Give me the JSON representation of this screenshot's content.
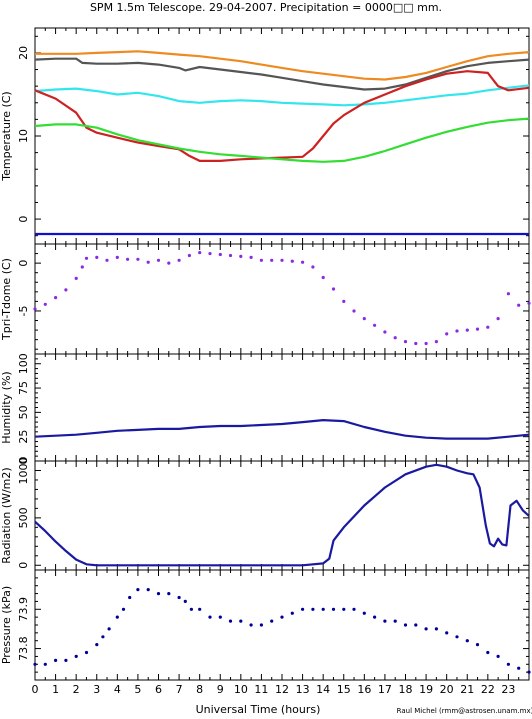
{
  "title": "SPM 1.5m Telescope. 29-04-2007. Precipitation = 0000□□ mm.",
  "credit": "Raul Michel (rmm@astrosen.unam.mx)",
  "xlabel": "Universal Time (hours)",
  "x_ticks": [
    0,
    1,
    2,
    3,
    4,
    5,
    6,
    7,
    8,
    9,
    10,
    11,
    12,
    13,
    14,
    15,
    16,
    17,
    18,
    19,
    20,
    21,
    22,
    23
  ],
  "colors": {
    "orange": "#ee8a22",
    "gray": "#555555",
    "cyan": "#33e6ee",
    "red": "#cc2222",
    "green": "#33dd33",
    "blue": "#1010cc",
    "purple": "#8a2be2",
    "navy": "#1a1aa0",
    "darkblue": "#000099"
  },
  "chart_data": [
    {
      "type": "line",
      "ylabel": "Temperature (C)",
      "xlim": [
        0,
        24
      ],
      "ylim": [
        -3,
        23
      ],
      "y_ticks": [
        0,
        10,
        20
      ],
      "series": [
        {
          "color": "orange",
          "x": [
            0,
            1,
            2,
            3,
            4,
            5,
            6,
            7,
            8,
            9,
            10,
            11,
            12,
            13,
            14,
            15,
            16,
            17,
            18,
            19,
            20,
            21,
            22,
            23,
            24
          ],
          "values": [
            19.9,
            19.9,
            19.9,
            20.0,
            20.1,
            20.2,
            20.0,
            19.8,
            19.6,
            19.3,
            19.0,
            18.6,
            18.2,
            17.8,
            17.5,
            17.2,
            16.9,
            16.8,
            17.1,
            17.6,
            18.3,
            19.0,
            19.6,
            19.9,
            20.1
          ]
        },
        {
          "color": "gray",
          "x": [
            0,
            1,
            2,
            2.3,
            3,
            4,
            5,
            6,
            7,
            7.3,
            8,
            9,
            10,
            11,
            12,
            13,
            14,
            15,
            16,
            17,
            18,
            19,
            20,
            21,
            22,
            23,
            24
          ],
          "values": [
            19.2,
            19.3,
            19.3,
            18.8,
            18.7,
            18.7,
            18.8,
            18.6,
            18.2,
            17.9,
            18.3,
            18.0,
            17.7,
            17.4,
            17.0,
            16.6,
            16.2,
            15.9,
            15.6,
            15.7,
            16.2,
            17.0,
            17.8,
            18.4,
            18.8,
            19.0,
            19.2
          ]
        },
        {
          "color": "cyan",
          "x": [
            0,
            1,
            2,
            3,
            4,
            5,
            6,
            7,
            8,
            9,
            10,
            11,
            12,
            13,
            14,
            15,
            16,
            17,
            18,
            19,
            20,
            21,
            22,
            23,
            24
          ],
          "values": [
            15.4,
            15.6,
            15.7,
            15.4,
            15.0,
            15.2,
            14.8,
            14.2,
            14.0,
            14.2,
            14.3,
            14.2,
            14.0,
            13.9,
            13.8,
            13.7,
            13.8,
            14.0,
            14.3,
            14.6,
            14.9,
            15.1,
            15.5,
            15.8,
            16.1
          ]
        },
        {
          "color": "red",
          "x": [
            0,
            1,
            2,
            2.5,
            3,
            4,
            5,
            6,
            7,
            7.5,
            8,
            9,
            10,
            11,
            12,
            13,
            13.5,
            14,
            14.5,
            15,
            16,
            17,
            18,
            19,
            20,
            21,
            22,
            22.5,
            23,
            24
          ],
          "values": [
            15.5,
            14.5,
            12.8,
            11.0,
            10.4,
            9.8,
            9.2,
            8.8,
            8.4,
            7.6,
            7.0,
            7.0,
            7.2,
            7.3,
            7.4,
            7.5,
            8.5,
            10.0,
            11.5,
            12.5,
            14.0,
            15.0,
            16.0,
            16.8,
            17.5,
            17.8,
            17.6,
            16.0,
            15.5,
            15.8
          ]
        },
        {
          "color": "green",
          "x": [
            0,
            1,
            2,
            3,
            4,
            5,
            6,
            7,
            8,
            9,
            10,
            11,
            12,
            13,
            14,
            15,
            16,
            17,
            18,
            19,
            20,
            21,
            22,
            23,
            24
          ],
          "values": [
            11.2,
            11.4,
            11.4,
            11.0,
            10.2,
            9.5,
            9.0,
            8.5,
            8.1,
            7.8,
            7.6,
            7.4,
            7.2,
            7.0,
            6.9,
            7.0,
            7.5,
            8.2,
            9.0,
            9.8,
            10.5,
            11.1,
            11.6,
            11.9,
            12.1
          ]
        },
        {
          "color": "blue",
          "x": [
            0,
            24
          ],
          "values": [
            -1.8,
            -1.8
          ]
        }
      ]
    },
    {
      "type": "scatter",
      "ylabel": "Tpri-Tdome (C)",
      "xlim": [
        0,
        24
      ],
      "ylim": [
        -9.5,
        2
      ],
      "y_ticks": [
        -5,
        0
      ],
      "series": [
        {
          "color": "purple",
          "x": [
            0,
            0.5,
            1,
            1.5,
            2,
            2.3,
            2.5,
            3,
            3.5,
            4,
            4.5,
            5,
            5.5,
            6,
            6.5,
            7,
            7.5,
            8,
            8.5,
            9,
            9.5,
            10,
            10.5,
            11,
            11.5,
            12,
            12.5,
            13,
            13.5,
            14,
            14.5,
            15,
            15.5,
            16,
            16.5,
            17,
            17.5,
            18,
            18.5,
            19,
            19.5,
            20,
            20.5,
            21,
            21.5,
            22,
            22.5,
            23,
            23.5,
            24
          ],
          "values": [
            -4.8,
            -4.3,
            -3.6,
            -2.8,
            -1.6,
            -0.4,
            0.5,
            0.6,
            0.3,
            0.6,
            0.4,
            0.4,
            0.1,
            0.3,
            0.0,
            0.3,
            0.8,
            1.1,
            1.0,
            0.9,
            0.8,
            0.7,
            0.6,
            0.3,
            0.3,
            0.3,
            0.2,
            0.1,
            -0.4,
            -1.5,
            -2.7,
            -4.0,
            -5.0,
            -5.8,
            -6.5,
            -7.2,
            -7.8,
            -8.2,
            -8.4,
            -8.4,
            -8.2,
            -7.4,
            -7.1,
            -7.0,
            -6.9,
            -6.7,
            -5.8,
            -3.2,
            -4.4,
            -4.2
          ]
        }
      ]
    },
    {
      "type": "line",
      "ylabel": "Humidity (%)",
      "xlim": [
        0,
        24
      ],
      "ylim": [
        0,
        110
      ],
      "y_ticks": [
        0,
        25,
        50,
        75,
        100
      ],
      "series": [
        {
          "color": "navy",
          "x": [
            0,
            1,
            2,
            3,
            4,
            5,
            6,
            7,
            8,
            9,
            10,
            11,
            12,
            13,
            14,
            15,
            16,
            17,
            18,
            19,
            20,
            21,
            22,
            23,
            24
          ],
          "values": [
            25,
            26,
            27,
            29,
            31,
            32,
            33,
            33,
            35,
            36,
            36,
            37,
            38,
            40,
            42,
            41,
            35,
            30,
            26,
            24,
            23,
            23,
            23,
            25,
            27
          ]
        }
      ]
    },
    {
      "type": "line",
      "ylabel": "Radiation (W/m2)",
      "xlim": [
        0,
        24
      ],
      "ylim": [
        -50,
        1100
      ],
      "y_ticks": [
        0,
        500,
        1000
      ],
      "series": [
        {
          "color": "navy",
          "x": [
            0,
            0.5,
            1,
            1.5,
            2,
            2.5,
            3,
            4,
            5,
            6,
            7,
            8,
            9,
            10,
            11,
            12,
            13,
            14,
            14.3,
            14.5,
            15,
            16,
            17,
            18,
            19,
            19.5,
            20,
            20.5,
            21,
            21.3,
            21.6,
            21.9,
            22.1,
            22.3,
            22.5,
            22.7,
            22.9,
            23.1,
            23.4,
            23.7,
            24
          ],
          "values": [
            460,
            360,
            250,
            150,
            60,
            10,
            0,
            0,
            0,
            0,
            0,
            0,
            0,
            0,
            0,
            0,
            0,
            20,
            70,
            260,
            400,
            630,
            820,
            960,
            1040,
            1060,
            1040,
            1000,
            970,
            960,
            820,
            420,
            230,
            200,
            280,
            220,
            210,
            630,
            680,
            580,
            520
          ]
        }
      ]
    },
    {
      "type": "scatter",
      "ylabel": "Pressure (kPa)",
      "xlim": [
        0,
        24
      ],
      "ylim": [
        73.72,
        74.0
      ],
      "y_ticks": [
        73.8,
        73.9
      ],
      "series": [
        {
          "color": "darkblue",
          "x": [
            0,
            0.5,
            1,
            1.5,
            2,
            2.5,
            3,
            3.3,
            3.6,
            4,
            4.3,
            4.6,
            5,
            5.5,
            6,
            6.5,
            7,
            7.3,
            7.6,
            8,
            8.5,
            9,
            9.5,
            10,
            10.5,
            11,
            11.5,
            12,
            12.5,
            13,
            13.5,
            14,
            14.5,
            15,
            15.5,
            16,
            16.5,
            17,
            17.5,
            18,
            18.5,
            19,
            19.5,
            20,
            20.5,
            21,
            21.5,
            22,
            22.5,
            23,
            23.5,
            24
          ],
          "values": [
            73.76,
            73.76,
            73.77,
            73.77,
            73.78,
            73.79,
            73.81,
            73.83,
            73.85,
            73.88,
            73.9,
            73.93,
            73.95,
            73.95,
            73.94,
            73.94,
            73.93,
            73.92,
            73.9,
            73.9,
            73.88,
            73.88,
            73.87,
            73.87,
            73.86,
            73.86,
            73.87,
            73.88,
            73.89,
            73.9,
            73.9,
            73.9,
            73.9,
            73.9,
            73.9,
            73.89,
            73.88,
            73.87,
            73.87,
            73.86,
            73.86,
            73.85,
            73.85,
            73.84,
            73.83,
            73.82,
            73.81,
            73.79,
            73.78,
            73.76,
            73.75,
            73.74
          ]
        }
      ]
    }
  ]
}
